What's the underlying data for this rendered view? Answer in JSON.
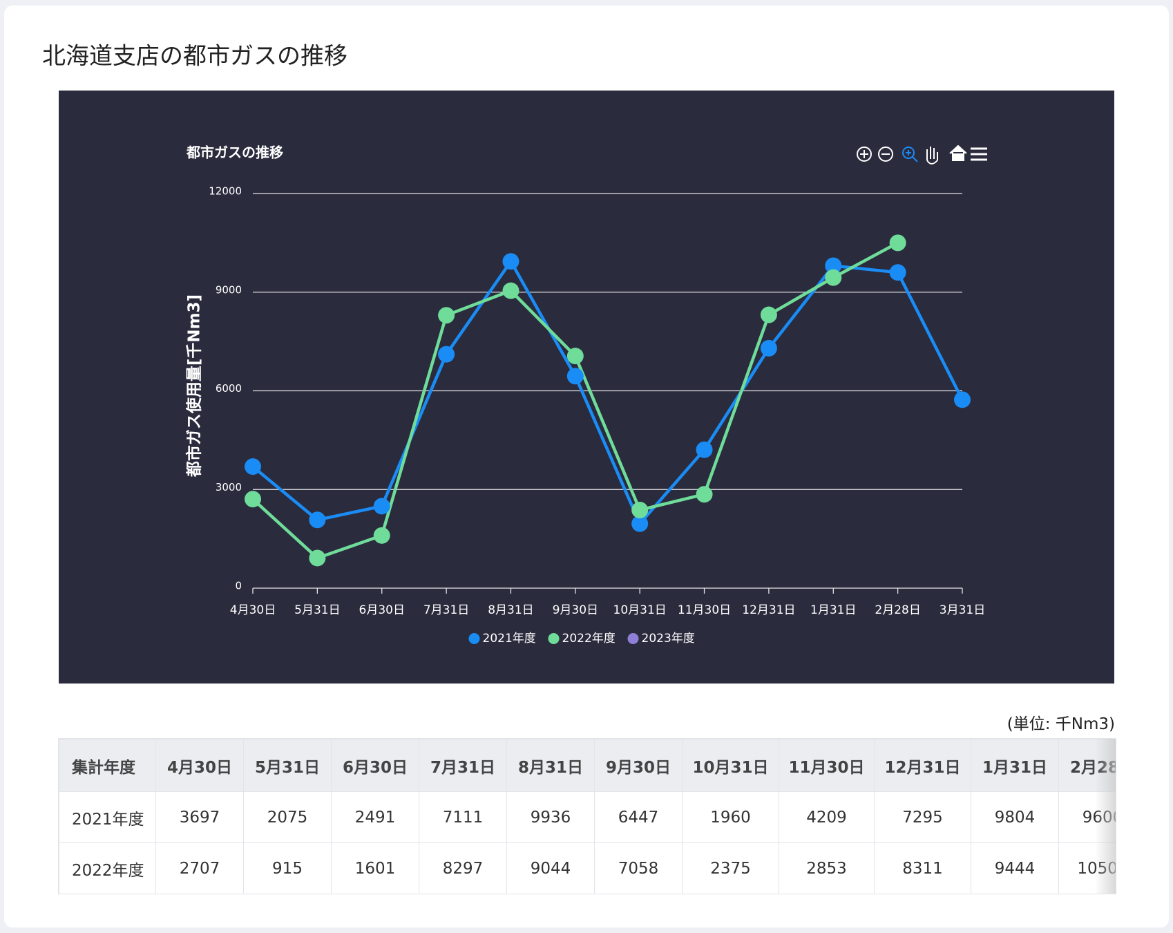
{
  "page_title": "北海道支店の都市ガスの推移",
  "chart_data": {
    "type": "line",
    "title": "都市ガスの推移",
    "y_label": "都市ガス使用量[千Nm3]",
    "categories": [
      "4月30日",
      "5月31日",
      "6月30日",
      "7月31日",
      "8月31日",
      "9月30日",
      "10月31日",
      "11月30日",
      "12月31日",
      "1月31日",
      "2月28日",
      "3月31日"
    ],
    "series": [
      {
        "name": "2021年度",
        "color": "#1a8cf5",
        "values": [
          3697,
          2075,
          2491,
          7111,
          9936,
          6447,
          1960,
          4209,
          7295,
          9804,
          9600,
          5730
        ]
      },
      {
        "name": "2022年度",
        "color": "#6fdc9a",
        "values": [
          2707,
          915,
          1601,
          8297,
          9044,
          7058,
          2375,
          2853,
          8311,
          9444,
          10500,
          null
        ]
      },
      {
        "name": "2023年度",
        "color": "#8f7fd6",
        "values": [
          null,
          null,
          null,
          null,
          null,
          null,
          null,
          null,
          null,
          null,
          null,
          null
        ]
      }
    ],
    "ylim": [
      0,
      12000
    ],
    "yticks": [
      0,
      3000,
      6000,
      9000,
      12000
    ],
    "grid": true,
    "legend": "bottom"
  },
  "table": {
    "unit": "(単位: 千Nm3)",
    "header": "集計年度",
    "columns": 11
  }
}
